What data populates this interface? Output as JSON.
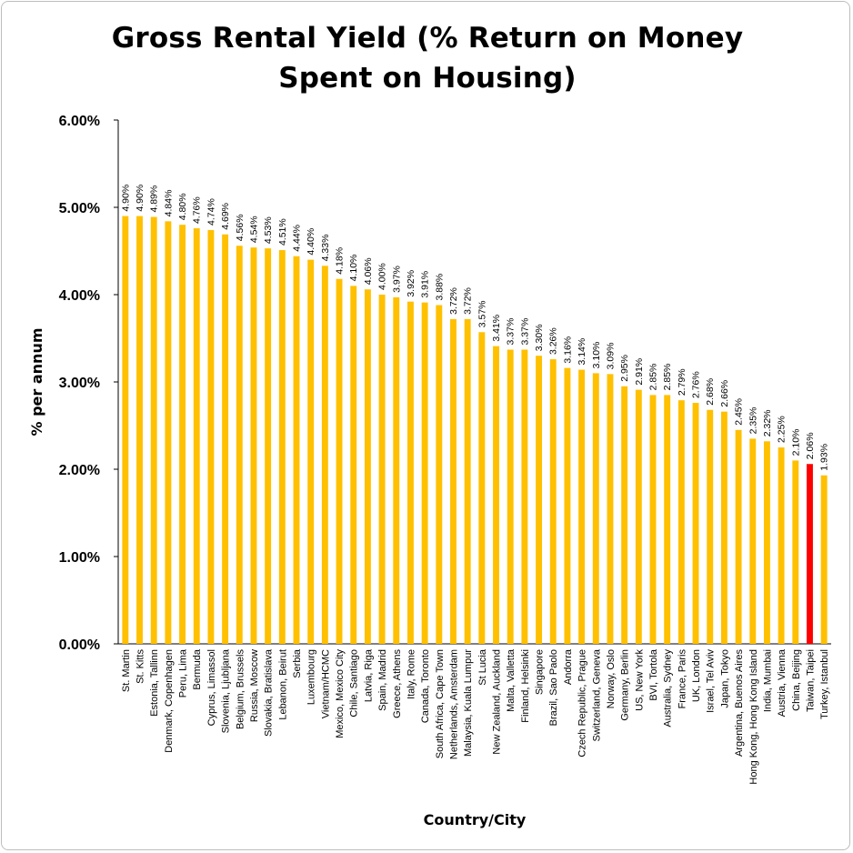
{
  "chart_data": {
    "type": "bar",
    "title": "Gross Rental Yield (% Return on Money Spent on Housing)",
    "xlabel": "Country/City",
    "ylabel": "% per annum",
    "ylim": [
      0,
      6
    ],
    "yticks": [
      "0.00%",
      "1.00%",
      "2.00%",
      "3.00%",
      "4.00%",
      "5.00%",
      "6.00%"
    ],
    "grid": false,
    "legend": "none",
    "bar_color": "#FFC000",
    "highlight_color": "#FF0000",
    "highlight_category": "Taiwan, Taipei",
    "categories": [
      "St. Martin",
      "St. Kitts",
      "Estonia, Tallinn",
      "Denmark, Copenhagen",
      "Peru, Lima",
      "Bermuda",
      "Cyprus, Limassol",
      "Slovenia, Ljubljana",
      "Belgium, Brussels",
      "Russia, Moscow",
      "Slovakia, Bratislava",
      "Lebanon, Beirut",
      "Serbia",
      "Luxembourg",
      "Vietnam/HCMC",
      "Mexico, Mexico City",
      "Chile, Santiago",
      "Latvia, Riga",
      "Spain, Madrid",
      "Greece, Athens",
      "Italy, Rome",
      "Canada, Toronto",
      "South Africa, Cape Town",
      "Netherlands, Amsterdam",
      "Malaysia, Kuala Lumpur",
      "St Lucia",
      "New Zealand, Auckland",
      "Malta, Valletta",
      "Finland, Helsinki",
      "Singapore",
      "Brazil, Sao Paolo",
      "Andorra",
      "Czech Republic, Prague",
      "Switzerland, Geneva",
      "Norway, Oslo",
      "Germany, Berlin",
      "US, New York",
      "BVI, Tortola",
      "Australia, Sydney",
      "France, Paris",
      "UK, London",
      "Israel, Tel Aviv",
      "Japan, Tokyo",
      "Argentina, Buenos Aires",
      "Hong Kong, Hong Kong Island",
      "India, Mumbai",
      "Austria, Vienna",
      "China, Beijing",
      "Taiwan, Taipei",
      "Turkey, Istanbul"
    ],
    "values": [
      4.9,
      4.9,
      4.89,
      4.84,
      4.8,
      4.76,
      4.74,
      4.69,
      4.56,
      4.54,
      4.53,
      4.51,
      4.44,
      4.4,
      4.33,
      4.18,
      4.1,
      4.06,
      4.0,
      3.97,
      3.92,
      3.91,
      3.88,
      3.72,
      3.72,
      3.57,
      3.41,
      3.37,
      3.37,
      3.3,
      3.26,
      3.16,
      3.14,
      3.1,
      3.09,
      2.95,
      2.91,
      2.85,
      2.85,
      2.79,
      2.76,
      2.68,
      2.66,
      2.45,
      2.35,
      2.32,
      2.25,
      2.1,
      2.06,
      1.93
    ],
    "data_labels": [
      "4.90%",
      "4.90%",
      "4.89%",
      "4.84%",
      "4.80%",
      "4.76%",
      "4.74%",
      "4.69%",
      "4.56%",
      "4.54%",
      "4.53%",
      "4.51%",
      "4.44%",
      "4.40%",
      "4.33%",
      "4.18%",
      "4.10%",
      "4.06%",
      "4.00%",
      "3.97%",
      "3.92%",
      "3.91%",
      "3.88%",
      "3.72%",
      "3.72%",
      "3.57%",
      "3.41%",
      "3.37%",
      "3.37%",
      "3.30%",
      "3.26%",
      "3.16%",
      "3.14%",
      "3.10%",
      "3.09%",
      "2.95%",
      "2.91%",
      "2.85%",
      "2.85%",
      "2.79%",
      "2.76%",
      "2.68%",
      "2.66%",
      "2.45%",
      "2.35%",
      "2.32%",
      "2.25%",
      "2.10%",
      "2.06%",
      "1.93%"
    ]
  }
}
